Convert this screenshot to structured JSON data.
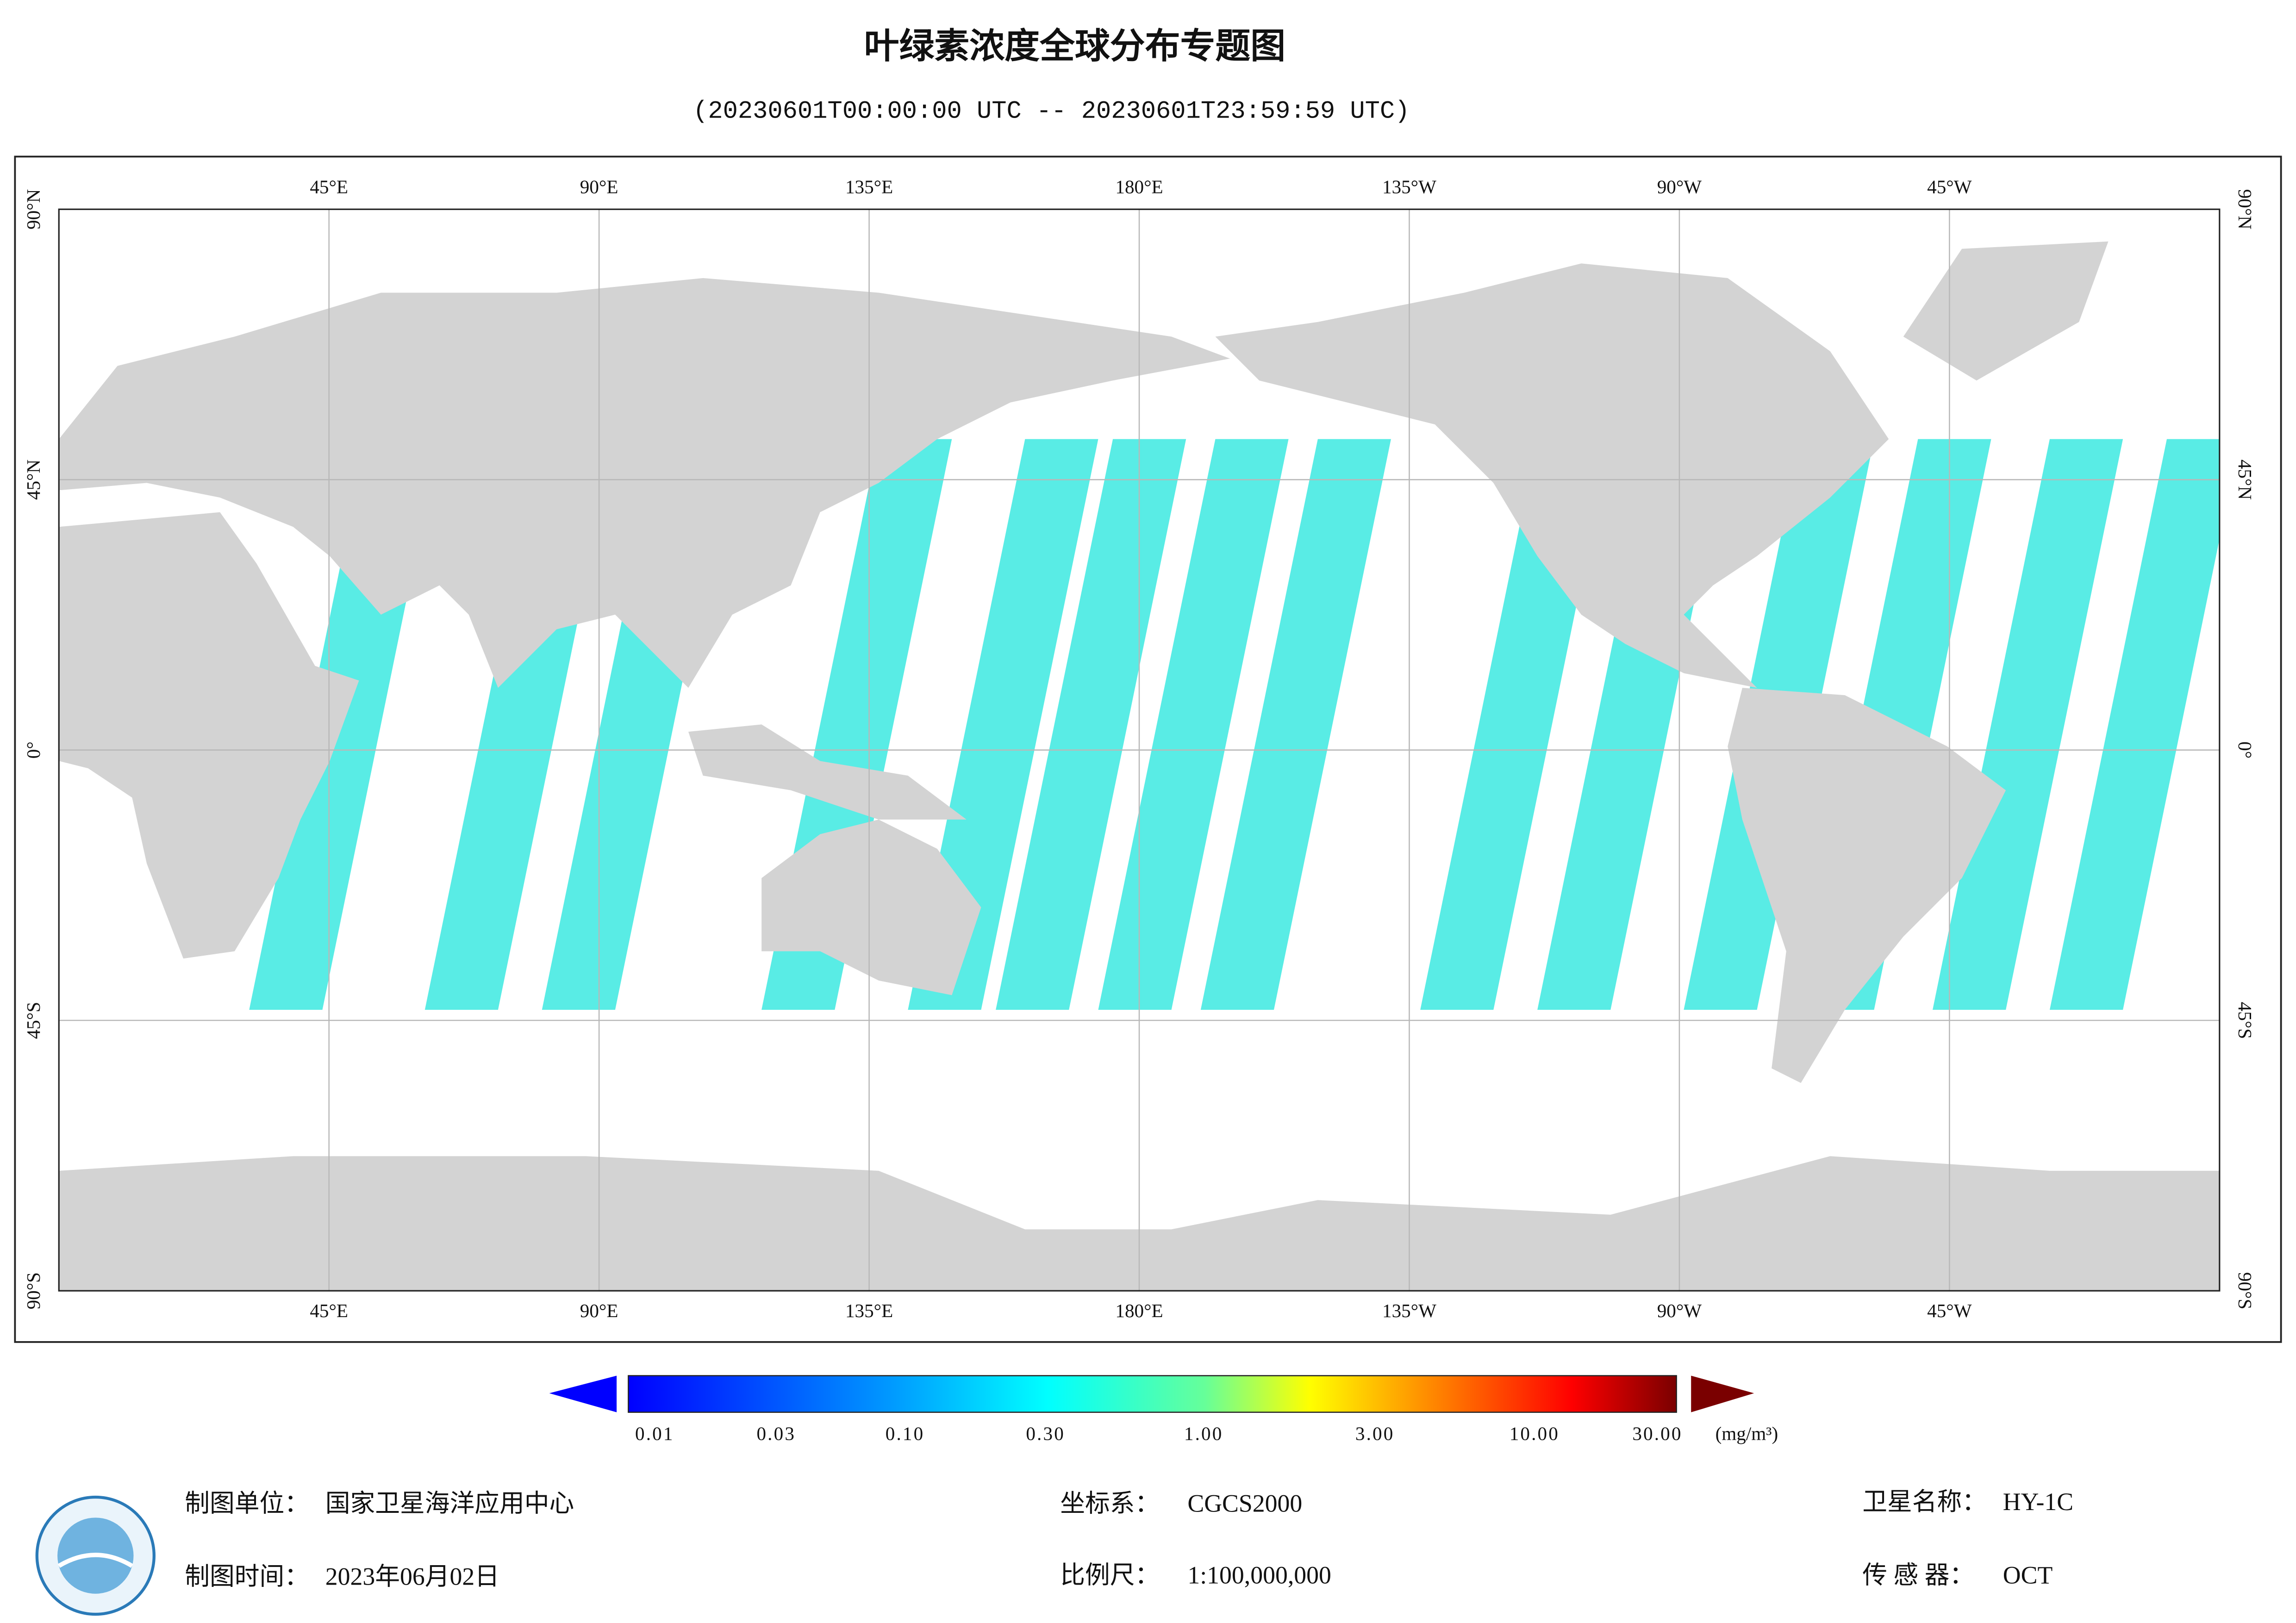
{
  "header": {
    "title": "叶绿素浓度全球分布专题图",
    "subtitle": "(20230601T00:00:00 UTC -- 20230601T23:59:59 UTC)"
  },
  "map": {
    "lon_labels": [
      "45°E",
      "90°E",
      "135°E",
      "180°E",
      "135°W",
      "90°W",
      "45°W"
    ],
    "lat_labels": [
      "90°N",
      "45°N",
      "0°",
      "45°S",
      "90°S"
    ]
  },
  "colorbar": {
    "labels": [
      "0.01",
      "0.03",
      "0.10",
      "0.30",
      "1.00",
      "3.00",
      "10.00",
      "30.00"
    ],
    "unit": "(mg/m³)"
  },
  "footer": {
    "producer_label": "制图单位：",
    "producer": "国家卫星海洋应用中心",
    "date_label": "制图时间：",
    "date": "2023年06月02日",
    "crs_label": "坐标系：",
    "crs": "CGCS2000",
    "scale_label": "比例尺：",
    "scale": "1:100,000,000",
    "satellite_label": "卫星名称：",
    "satellite": "HY-1C",
    "sensor_label": "传 感 器：",
    "sensor": "OCT"
  }
}
